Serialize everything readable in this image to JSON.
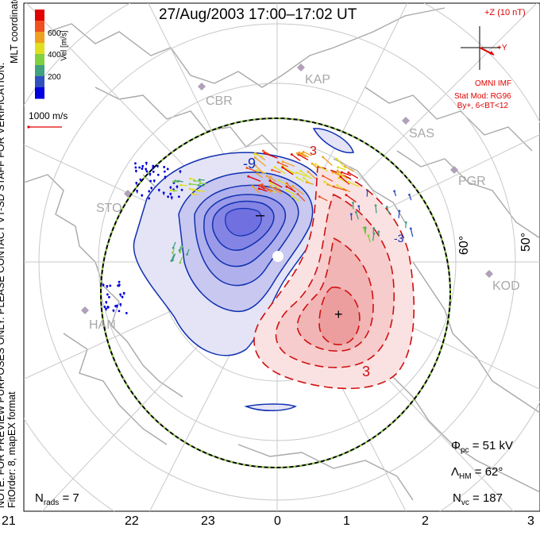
{
  "title": "27/Aug/2003 17:00–17:02 UT",
  "imf": {
    "header": "+Z (10 nT)",
    "y_label": "+Y",
    "source": "OMNI IMF",
    "model_line1": "Stat Mod: RG96",
    "model_line2": "By+, 6<BT<12"
  },
  "velocity_scale": {
    "label": "1000 m/s",
    "unit": "Vel [m/s]",
    "ticks": [
      "600",
      "400",
      "200"
    ],
    "colors": [
      "#0000e0",
      "#3050c0",
      "#40a080",
      "#80d040",
      "#e0e020",
      "#f0a020",
      "#f05020",
      "#e00000"
    ]
  },
  "side_note": {
    "line1": "NOTE: FOR PREVIEW PURPOSES ONLY. PLEASE CONTACT VT-SD STAFF FOR VERIFICATION.",
    "line2": "FitOrder: 8, mapEX format",
    "line3": "MLT coordinates"
  },
  "stations": [
    "KAP",
    "CBR",
    "SAS",
    "PGR",
    "STO",
    "KOD",
    "HAN"
  ],
  "latitude_labels": [
    "60°",
    "50°"
  ],
  "contour_labels": [
    "-9",
    "3",
    "3",
    "-3"
  ],
  "potential_markers": {
    "minus": "–",
    "plus": "+"
  },
  "stats": {
    "phi_label": "Φ",
    "phi_sub": "pc",
    "phi_value": "= 51 kV",
    "lambda_label": "Λ",
    "lambda_sub": "HM",
    "lambda_value": "= 62°",
    "nvc_label": "N",
    "nvc_sub": "vc",
    "nvc_value": "= 187",
    "nrads_label": "N",
    "nrads_sub": "rads",
    "nrads_value": "= 7"
  },
  "mlt_labels": [
    "21",
    "22",
    "23",
    "0",
    "1",
    "2",
    "3"
  ],
  "colors": {
    "negative_contour": "#1030b0",
    "positive_contour": "#d01010",
    "negative_fill": "#8080e8",
    "positive_fill": "#f0a0a0",
    "map": "#a8a8a8",
    "imf": "#e00000"
  }
}
